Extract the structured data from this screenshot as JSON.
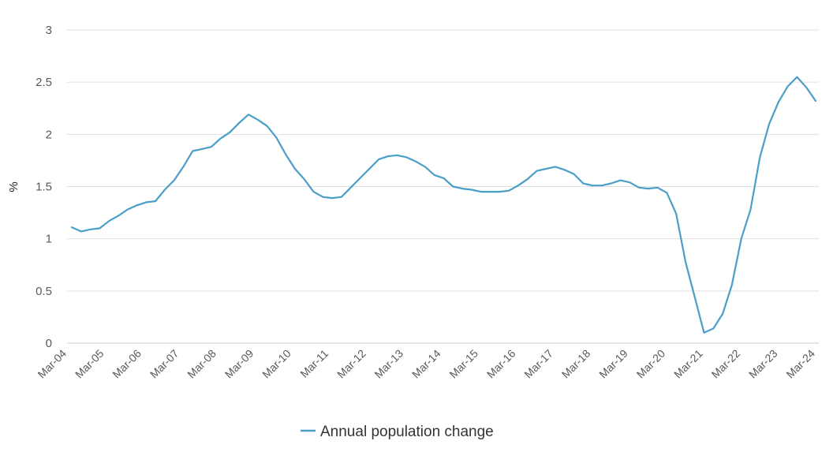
{
  "chart_data": {
    "type": "line",
    "title": "",
    "xlabel": "",
    "ylabel": "%",
    "ylim": [
      0,
      3
    ],
    "yticks": [
      "0",
      "0.5",
      "1",
      "1.5",
      "2",
      "2.5",
      "3"
    ],
    "xticks": [
      "Mar-04",
      "Mar-05",
      "Mar-06",
      "Mar-07",
      "Mar-08",
      "Mar-09",
      "Mar-10",
      "Mar-11",
      "Mar-12",
      "Mar-13",
      "Mar-14",
      "Mar-15",
      "Mar-16",
      "Mar-17",
      "Mar-18",
      "Mar-19",
      "Mar-20",
      "Mar-21",
      "Mar-22",
      "Mar-23",
      "Mar-24"
    ],
    "grid": true,
    "legend_position": "bottom",
    "series": [
      {
        "name": "Annual population change",
        "color": "#4a9ec8",
        "values": [
          1.11,
          1.07,
          1.09,
          1.1,
          1.17,
          1.22,
          1.28,
          1.32,
          1.35,
          1.36,
          1.47,
          1.56,
          1.69,
          1.84,
          1.86,
          1.88,
          1.96,
          2.02,
          2.11,
          2.19,
          2.14,
          2.08,
          1.97,
          1.81,
          1.67,
          1.57,
          1.45,
          1.4,
          1.39,
          1.4,
          1.49,
          1.58,
          1.67,
          1.76,
          1.79,
          1.8,
          1.78,
          1.74,
          1.69,
          1.61,
          1.58,
          1.5,
          1.48,
          1.47,
          1.45,
          1.45,
          1.45,
          1.46,
          1.51,
          1.57,
          1.65,
          1.67,
          1.69,
          1.66,
          1.62,
          1.53,
          1.51,
          1.51,
          1.53,
          1.56,
          1.54,
          1.49,
          1.48,
          1.49,
          1.44,
          1.24,
          0.78,
          0.44,
          0.1,
          0.14,
          0.28,
          0.56,
          1.0,
          1.28,
          1.78,
          2.1,
          2.31,
          2.46,
          2.55,
          2.45,
          2.32
        ]
      }
    ]
  }
}
